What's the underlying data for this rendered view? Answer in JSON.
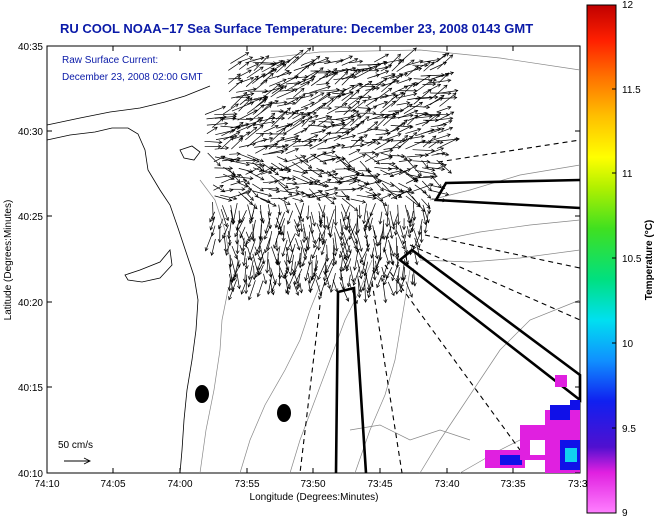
{
  "title": "RU COOL  NOAA−17  Sea Surface Temperature:  December 23, 2008 0143 GMT",
  "legend": {
    "line1": "Raw Surface Current:",
    "line2": "December 23, 2008 02:00 GMT"
  },
  "scale_label": "50 cm/s",
  "colorbar": {
    "label": "Temperature (°C)",
    "ticks": [
      "12",
      "11.5",
      "11",
      "10.5",
      "10",
      "9.5",
      "9"
    ],
    "range": [
      9,
      12
    ]
  },
  "colors": {
    "title": "#0a1aa8",
    "land": "#ffffff",
    "contours": "#888888",
    "data_hotspot": "#d020d0"
  },
  "chart_data": {
    "type": "map",
    "title": "RU COOL  NOAA−17  Sea Surface Temperature:  December 23, 2008 0143 GMT",
    "xlabel": "Longitude (Degrees:Minutes)",
    "ylabel": "Latitude (Degrees:Minutes)",
    "x_ticks": [
      "74:10",
      "74:05",
      "74:00",
      "73:55",
      "73:50",
      "73:45",
      "73:40",
      "73:35",
      "73:3"
    ],
    "y_ticks": [
      "40:35",
      "40:30",
      "40:25",
      "40:20",
      "40:15",
      "40:10"
    ],
    "colorbar_range": [
      9,
      12
    ],
    "colorbar_ticks": [
      12,
      11.5,
      11,
      10.5,
      10,
      9.5,
      9
    ]
  }
}
